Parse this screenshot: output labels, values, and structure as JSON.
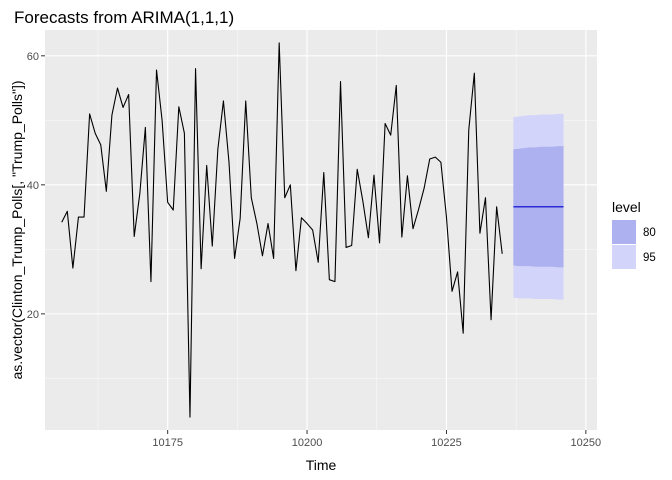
{
  "chart_data": {
    "type": "line",
    "title": "Forecasts from ARIMA(1,1,1)",
    "xlabel": "Time",
    "ylabel": "as.vector(Clinton_Trump_Polls[, \"Trump_Polls\"])",
    "xlim": [
      10153,
      10252
    ],
    "ylim": [
      2,
      64
    ],
    "x_ticks": [
      10175,
      10200,
      10225,
      10250
    ],
    "y_ticks": [
      20,
      40,
      60
    ],
    "grid": true,
    "observed": {
      "x_start": 10156,
      "values": [
        34.2,
        35.9,
        27.1,
        35.0,
        35.0,
        51.0,
        48.0,
        46.2,
        39.0,
        50.8,
        55.0,
        52.0,
        54.0,
        32.0,
        38.6,
        48.9,
        25.0,
        57.8,
        50.0,
        37.3,
        36.1,
        52.1,
        48.0,
        4.0,
        58.0,
        27.0,
        43.0,
        30.5,
        45.5,
        53.0,
        43.5,
        28.6,
        34.8,
        53.0,
        38.0,
        34.0,
        29.0,
        34.0,
        28.6,
        62.0,
        38.0,
        40.0,
        26.7,
        34.9,
        34.0,
        33.0,
        28.0,
        41.9,
        25.3,
        25.0,
        56.0,
        30.3,
        30.6,
        42.4,
        37.5,
        31.8,
        41.5,
        31.0,
        49.5,
        47.7,
        55.4,
        31.9,
        41.4,
        33.2,
        36.2,
        39.5,
        44.0,
        44.3,
        43.5,
        35.0,
        23.5,
        26.5,
        17.0,
        48.5,
        57.3,
        32.5,
        38.0,
        19.1,
        36.6,
        29.3
      ]
    },
    "forecast": {
      "x_start": 10237,
      "x_end": 10246,
      "mean": 36.6,
      "lo80": [
        27.5,
        27.4,
        27.4,
        27.4,
        27.3,
        27.3,
        27.3,
        27.3,
        27.2,
        27.2
      ],
      "hi80": [
        45.5,
        45.6,
        45.7,
        45.8,
        45.8,
        45.9,
        45.9,
        45.9,
        46.0,
        46.0
      ],
      "lo95": [
        22.5,
        22.4,
        22.4,
        22.4,
        22.3,
        22.3,
        22.3,
        22.3,
        22.2,
        22.2
      ],
      "hi95": [
        50.5,
        50.6,
        50.7,
        50.8,
        50.8,
        50.9,
        50.9,
        50.9,
        51.0,
        51.0
      ]
    },
    "legend": {
      "title": "level",
      "position": "right",
      "items": [
        {
          "label": "80",
          "color": "#aeb1ef"
        },
        {
          "label": "95",
          "color": "#d3d4fa"
        }
      ]
    },
    "colors": {
      "panel": "#ebebeb",
      "grid_major": "#ffffff",
      "line": "#000000",
      "mean_line": "#0000cc"
    }
  }
}
